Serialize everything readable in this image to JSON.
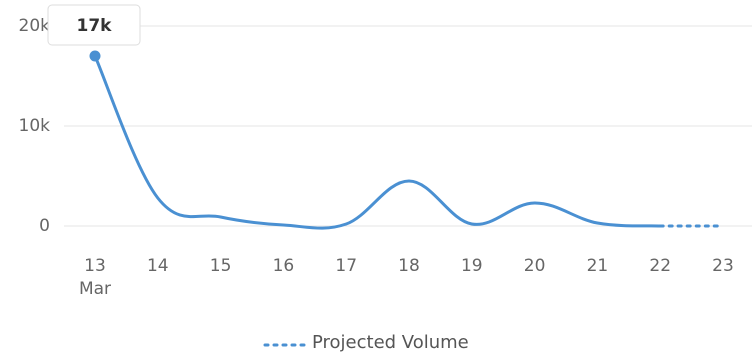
{
  "chart_data": {
    "type": "line",
    "categories": [
      "13",
      "14",
      "15",
      "16",
      "17",
      "18",
      "19",
      "20",
      "21",
      "22",
      "23"
    ],
    "month_label": "Mar",
    "series": [
      {
        "color": "#4a90d2",
        "values": [
          17000,
          2800,
          900,
          100,
          200,
          4500,
          200,
          2300,
          300,
          0,
          null
        ],
        "value_labels": [
          "17k",
          null,
          null,
          null,
          null,
          null,
          null,
          null,
          null,
          null,
          null
        ]
      },
      {
        "name": "Projected Volume",
        "color": "#4a90d2",
        "dashed": true,
        "values": [
          null,
          null,
          null,
          null,
          null,
          null,
          null,
          null,
          null,
          0,
          0
        ]
      }
    ],
    "ylim": [
      0,
      20000
    ],
    "yticks": [
      0,
      {
        "value": 10000,
        "label": "10k"
      },
      {
        "value": 20000,
        "label": "20k"
      }
    ],
    "grid": true
  }
}
